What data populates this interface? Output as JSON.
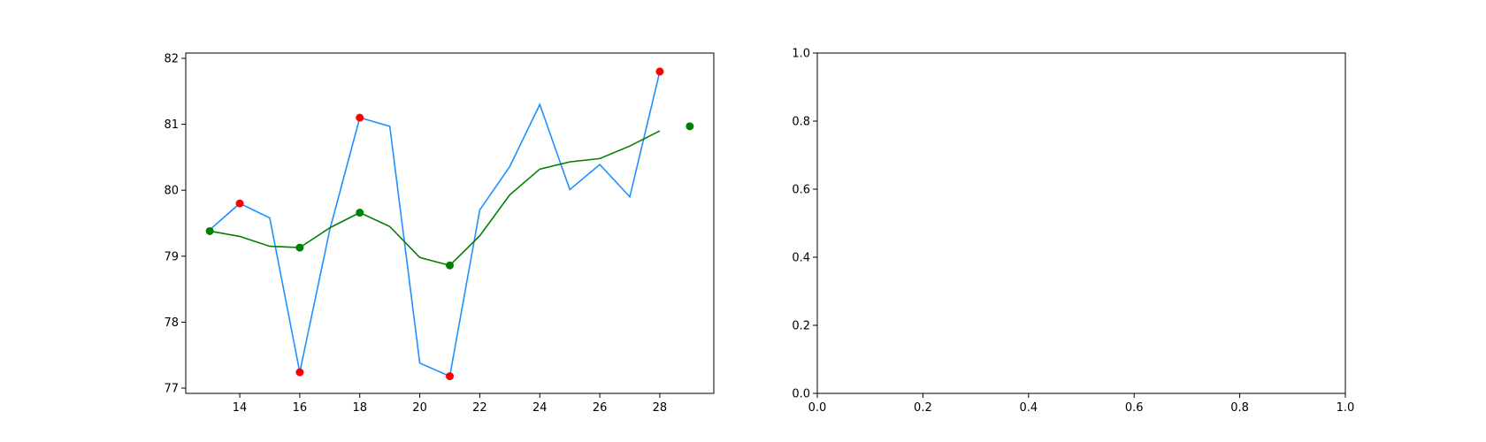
{
  "chart_data": [
    {
      "type": "line",
      "title": "",
      "xlabel": "",
      "ylabel": "",
      "xlim": [
        12.2,
        29.8
      ],
      "ylim": [
        76.92,
        82.08
      ],
      "x_ticks": [
        14,
        16,
        18,
        20,
        22,
        24,
        26,
        28
      ],
      "y_ticks": [
        77,
        78,
        79,
        80,
        81,
        82
      ],
      "grid": false,
      "series": [
        {
          "color": "#1e90ff",
          "style": "line",
          "x": [
            13,
            14,
            15,
            16,
            17,
            18,
            19,
            20,
            21,
            22,
            23,
            24,
            25,
            26,
            27,
            28
          ],
          "y": [
            79.4,
            79.8,
            79.58,
            77.24,
            79.4,
            81.1,
            80.97,
            77.38,
            77.18,
            79.7,
            80.36,
            81.3,
            80.01,
            80.39,
            79.9,
            81.8
          ]
        },
        {
          "color": "#008000",
          "style": "line",
          "x": [
            13,
            14,
            15,
            16,
            17,
            18,
            19,
            20,
            21,
            22,
            23,
            24,
            25,
            26,
            27,
            28
          ],
          "y": [
            79.38,
            79.3,
            79.15,
            79.13,
            79.43,
            79.66,
            79.45,
            78.98,
            78.86,
            79.31,
            79.93,
            80.32,
            80.43,
            80.48,
            80.67,
            80.9
          ]
        },
        {
          "color": "#ff0000",
          "style": "scatter",
          "x": [
            14,
            16,
            18,
            21,
            28
          ],
          "y": [
            79.8,
            77.24,
            81.1,
            77.18,
            81.8
          ]
        },
        {
          "color": "#008000",
          "style": "scatter",
          "x": [
            13,
            16,
            18,
            21,
            29
          ],
          "y": [
            79.38,
            79.13,
            79.66,
            78.86,
            80.97
          ]
        }
      ]
    },
    {
      "type": "line",
      "title": "",
      "xlabel": "",
      "ylabel": "",
      "xlim": [
        0,
        1
      ],
      "ylim": [
        0,
        1
      ],
      "x_ticks": [
        0.0,
        0.2,
        0.4,
        0.6,
        0.8,
        1.0
      ],
      "x_tick_labels": [
        "0.0",
        "0.2",
        "0.4",
        "0.6",
        "0.8",
        "1.0"
      ],
      "y_ticks": [
        0.0,
        0.2,
        0.4,
        0.6,
        0.8,
        1.0
      ],
      "y_tick_labels": [
        "0.0",
        "0.2",
        "0.4",
        "0.6",
        "0.8",
        "1.0"
      ],
      "grid": false,
      "series": []
    }
  ]
}
